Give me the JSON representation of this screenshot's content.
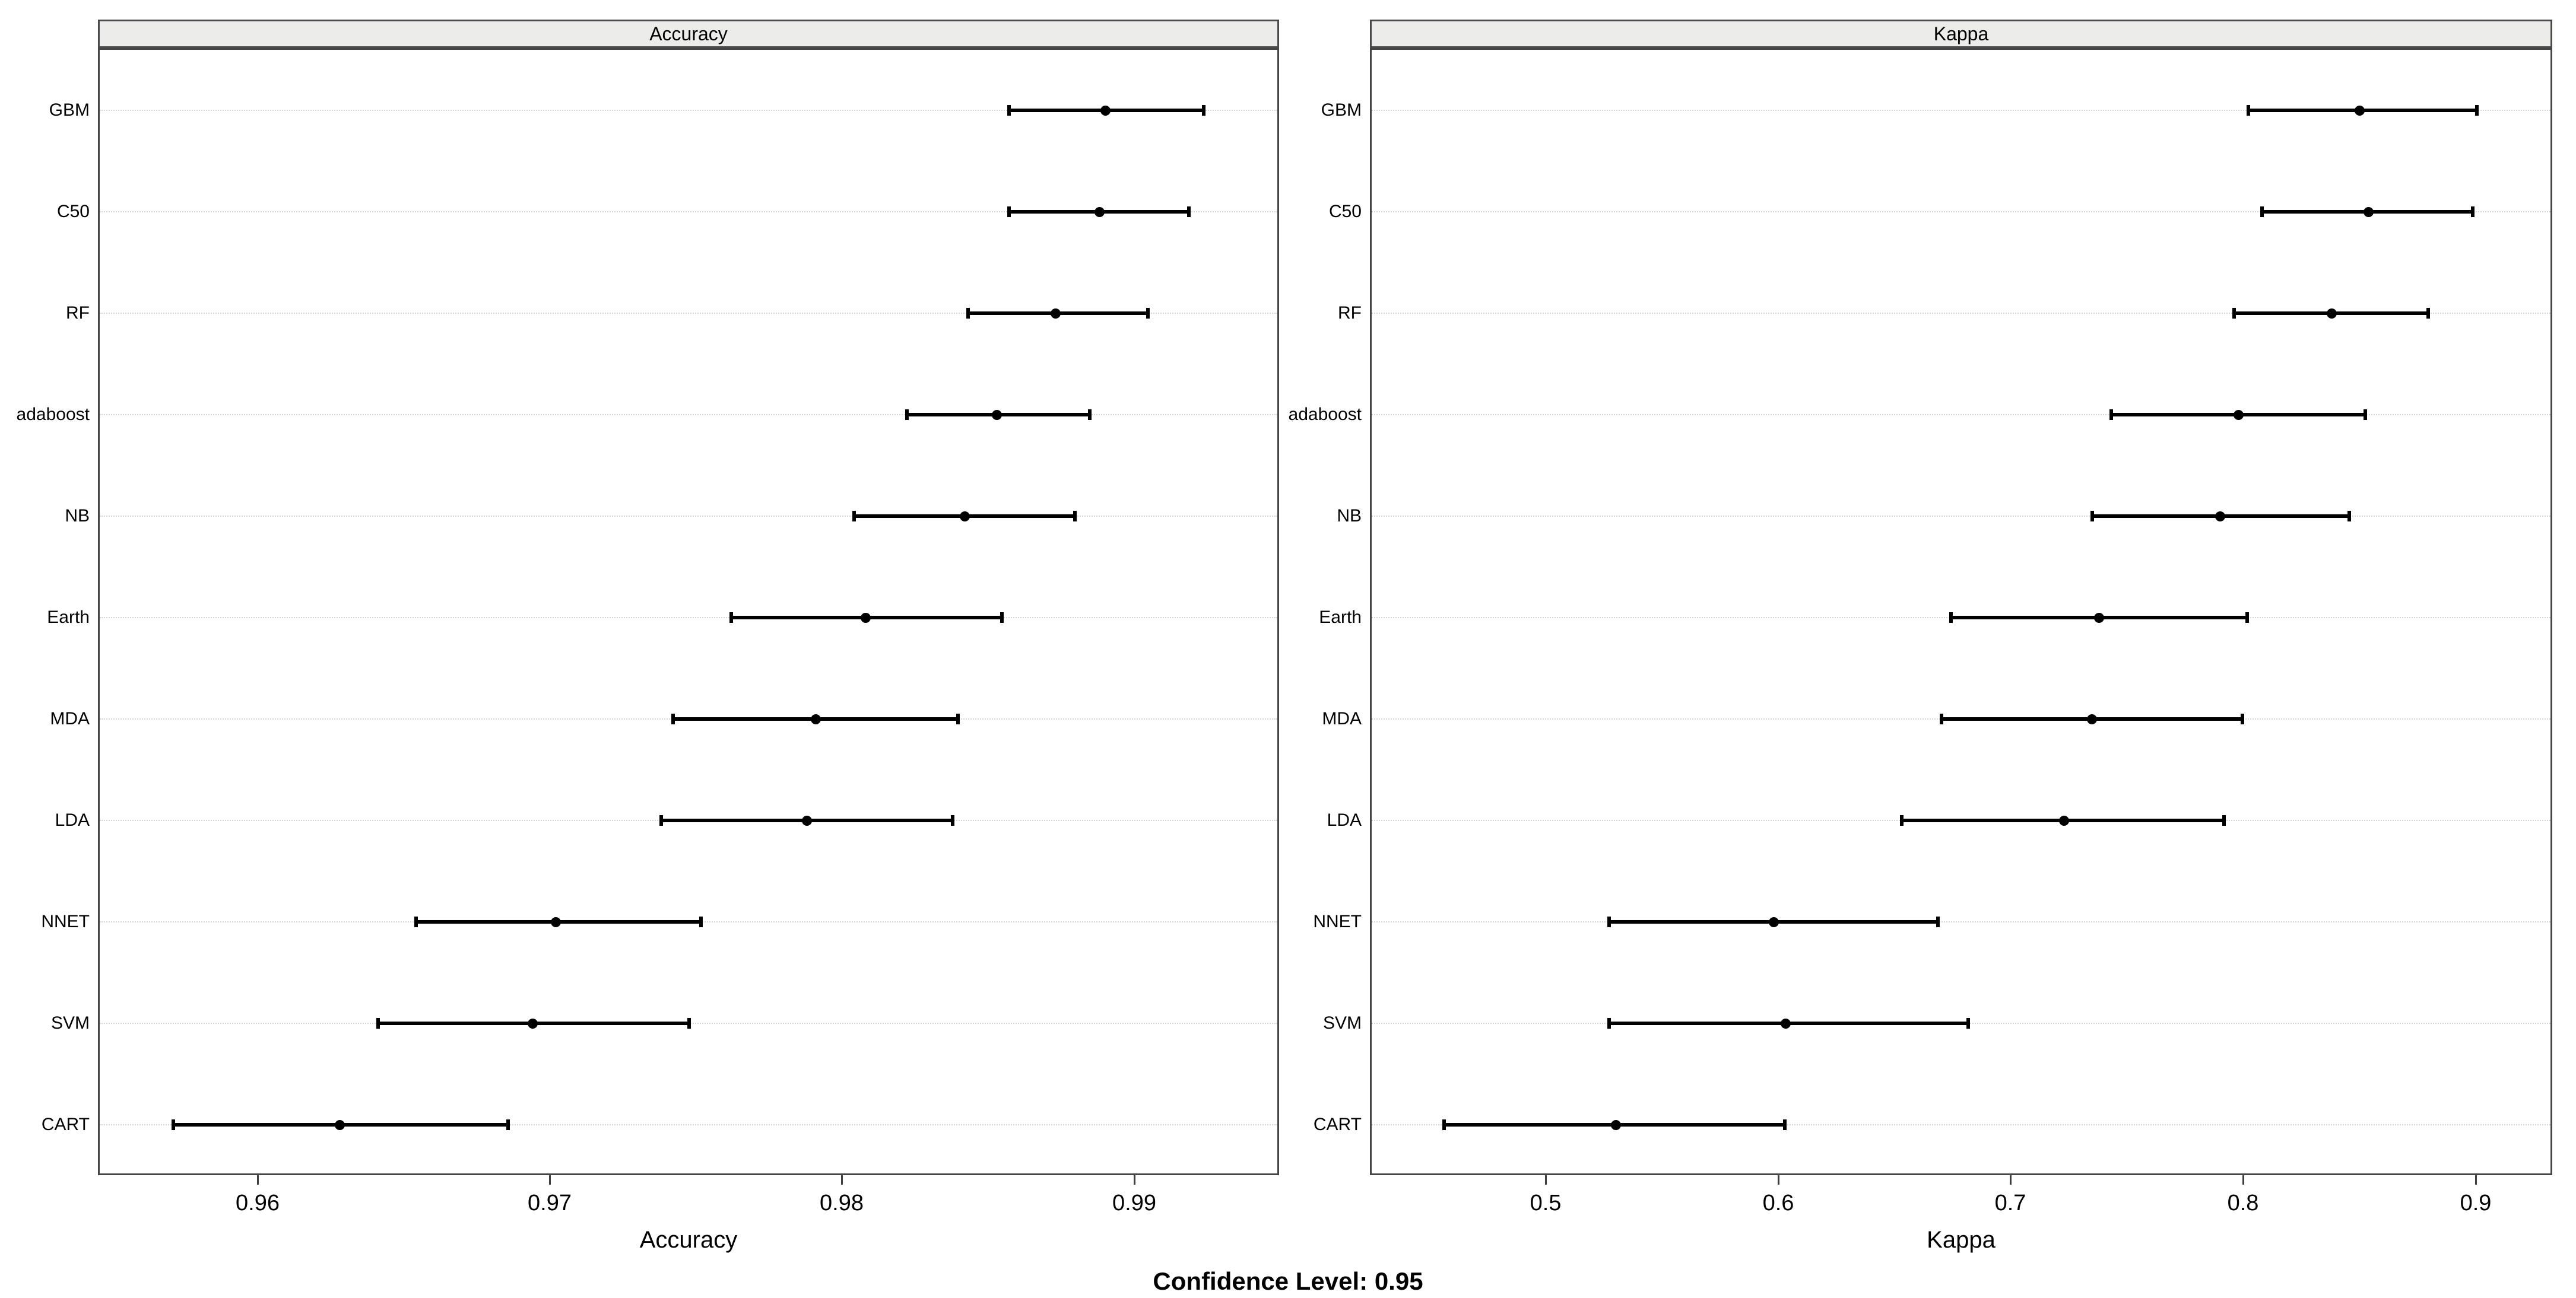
{
  "figure": {
    "confidence_note": "Confidence Level: 0.95",
    "colors": {
      "background": "#ffffff",
      "data": "#000000",
      "grid": "#d6d6d6",
      "panel_border": "#454545",
      "strip_fill": "#ececea",
      "text": "#000000"
    }
  },
  "chart_data": [
    {
      "type": "scatter",
      "subtype": "dotplot-with-confidence-intervals",
      "title": "Accuracy",
      "xlabel": "Accuracy",
      "xlim": [
        0.9546,
        0.9949
      ],
      "xticks": [
        "0.96",
        "0.97",
        "0.98",
        "0.99"
      ],
      "xtick_values": [
        0.96,
        0.97,
        0.98,
        0.99
      ],
      "grid": true,
      "legend_position": "none",
      "categories": [
        "GBM",
        "C50",
        "RF",
        "adaboost",
        "NB",
        "Earth",
        "MDA",
        "LDA",
        "NNET",
        "SVM",
        "CART"
      ],
      "series": [
        {
          "name": "mean",
          "values": [
            0.989,
            0.9888,
            0.9873,
            0.9853,
            0.9842,
            0.9808,
            0.9791,
            0.9788,
            0.9702,
            0.9694,
            0.9628
          ]
        },
        {
          "name": "ci_lower",
          "values": [
            0.9857,
            0.9857,
            0.9843,
            0.9822,
            0.9804,
            0.9762,
            0.9742,
            0.9738,
            0.9654,
            0.9641,
            0.9571
          ]
        },
        {
          "name": "ci_upper",
          "values": [
            0.9924,
            0.9919,
            0.9905,
            0.9885,
            0.988,
            0.9855,
            0.984,
            0.9838,
            0.9752,
            0.9748,
            0.9686
          ]
        }
      ]
    },
    {
      "type": "scatter",
      "subtype": "dotplot-with-confidence-intervals",
      "title": "Kappa",
      "xlabel": "Kappa",
      "xlim": [
        0.4251,
        0.9323
      ],
      "xticks": [
        "0.5",
        "0.6",
        "0.7",
        "0.8",
        "0.9"
      ],
      "xtick_values": [
        0.5,
        0.6,
        0.7,
        0.8,
        0.9
      ],
      "grid": true,
      "legend_position": "none",
      "categories": [
        "GBM",
        "C50",
        "RF",
        "adaboost",
        "NB",
        "Earth",
        "MDA",
        "LDA",
        "NNET",
        "SVM",
        "CART"
      ],
      "series": [
        {
          "name": "mean",
          "values": [
            0.85,
            0.854,
            0.838,
            0.798,
            0.79,
            0.738,
            0.735,
            0.723,
            0.598,
            0.603,
            0.53
          ]
        },
        {
          "name": "ci_lower",
          "values": [
            0.802,
            0.808,
            0.796,
            0.743,
            0.735,
            0.674,
            0.67,
            0.653,
            0.527,
            0.527,
            0.456
          ]
        },
        {
          "name": "ci_upper",
          "values": [
            0.901,
            0.899,
            0.88,
            0.853,
            0.846,
            0.802,
            0.8,
            0.792,
            0.669,
            0.682,
            0.603
          ]
        }
      ]
    }
  ]
}
